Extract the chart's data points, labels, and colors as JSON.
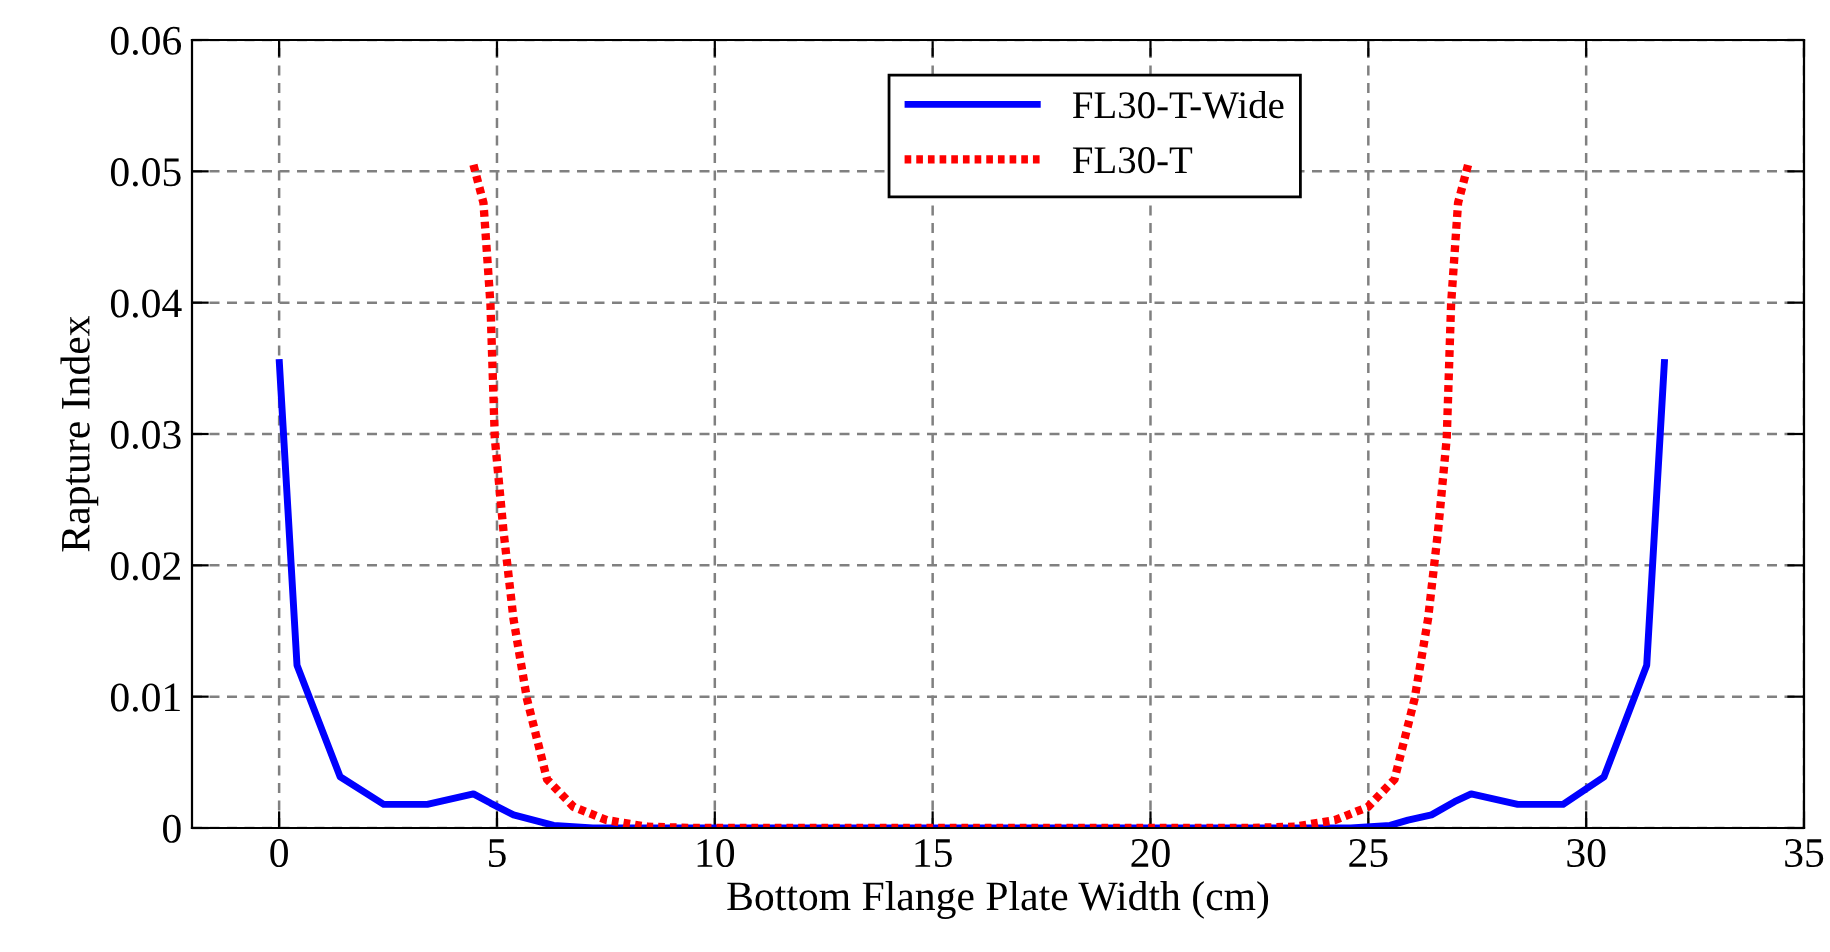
{
  "chart_data": {
    "type": "line",
    "xlabel": "Bottom Flange Plate Width (cm)",
    "ylabel": "Rapture Index",
    "xlim": [
      -2,
      35
    ],
    "xticks": [
      0,
      5,
      10,
      15,
      20,
      25,
      30,
      35
    ],
    "ylim": [
      0,
      0.06
    ],
    "yticks": [
      0,
      0.01,
      0.02,
      0.03,
      0.04,
      0.05,
      0.06
    ],
    "grid": true,
    "legend": "top",
    "marker": "none",
    "series": [
      {
        "name": "FL30-T-Wide",
        "color": "#0000ff",
        "line_style": "solid",
        "x": [
          0,
          0.41,
          1.4,
          2.4,
          3.4,
          4.46,
          4.85,
          5.38,
          6.3,
          7.2,
          15.9,
          24.6,
          25.5,
          25.91,
          26.45,
          26.98,
          27.36,
          28.43,
          29.47,
          30.41,
          31.39,
          31.8
        ],
        "values": [
          0.0357,
          0.0124,
          0.0039,
          0.0018,
          0.0018,
          0.0026,
          0.0019,
          0.001,
          0.0002,
          0,
          0,
          0,
          0.0002,
          0.0006,
          0.001,
          0.002,
          0.0026,
          0.0018,
          0.0018,
          0.0039,
          0.0124,
          0.0357
        ]
      },
      {
        "name": "FL30-T",
        "color": "#ff0000",
        "line_style": "dotted",
        "x": [
          4.46,
          4.69,
          4.85,
          4.95,
          5.15,
          5.38,
          5.69,
          6.15,
          6.76,
          7.52,
          8.44,
          9.5,
          22.25,
          23.31,
          24.23,
          24.99,
          25.6,
          26.06,
          26.37,
          26.6,
          26.8,
          26.9,
          27.06,
          27.29
        ],
        "values": [
          0.0505,
          0.0476,
          0.0399,
          0.0297,
          0.0226,
          0.0159,
          0.0098,
          0.0037,
          0.0016,
          0.0006,
          0.0001,
          0,
          0,
          0.0001,
          0.0006,
          0.0016,
          0.0037,
          0.0098,
          0.0159,
          0.0226,
          0.0297,
          0.0399,
          0.0476,
          0.0505
        ]
      }
    ]
  }
}
